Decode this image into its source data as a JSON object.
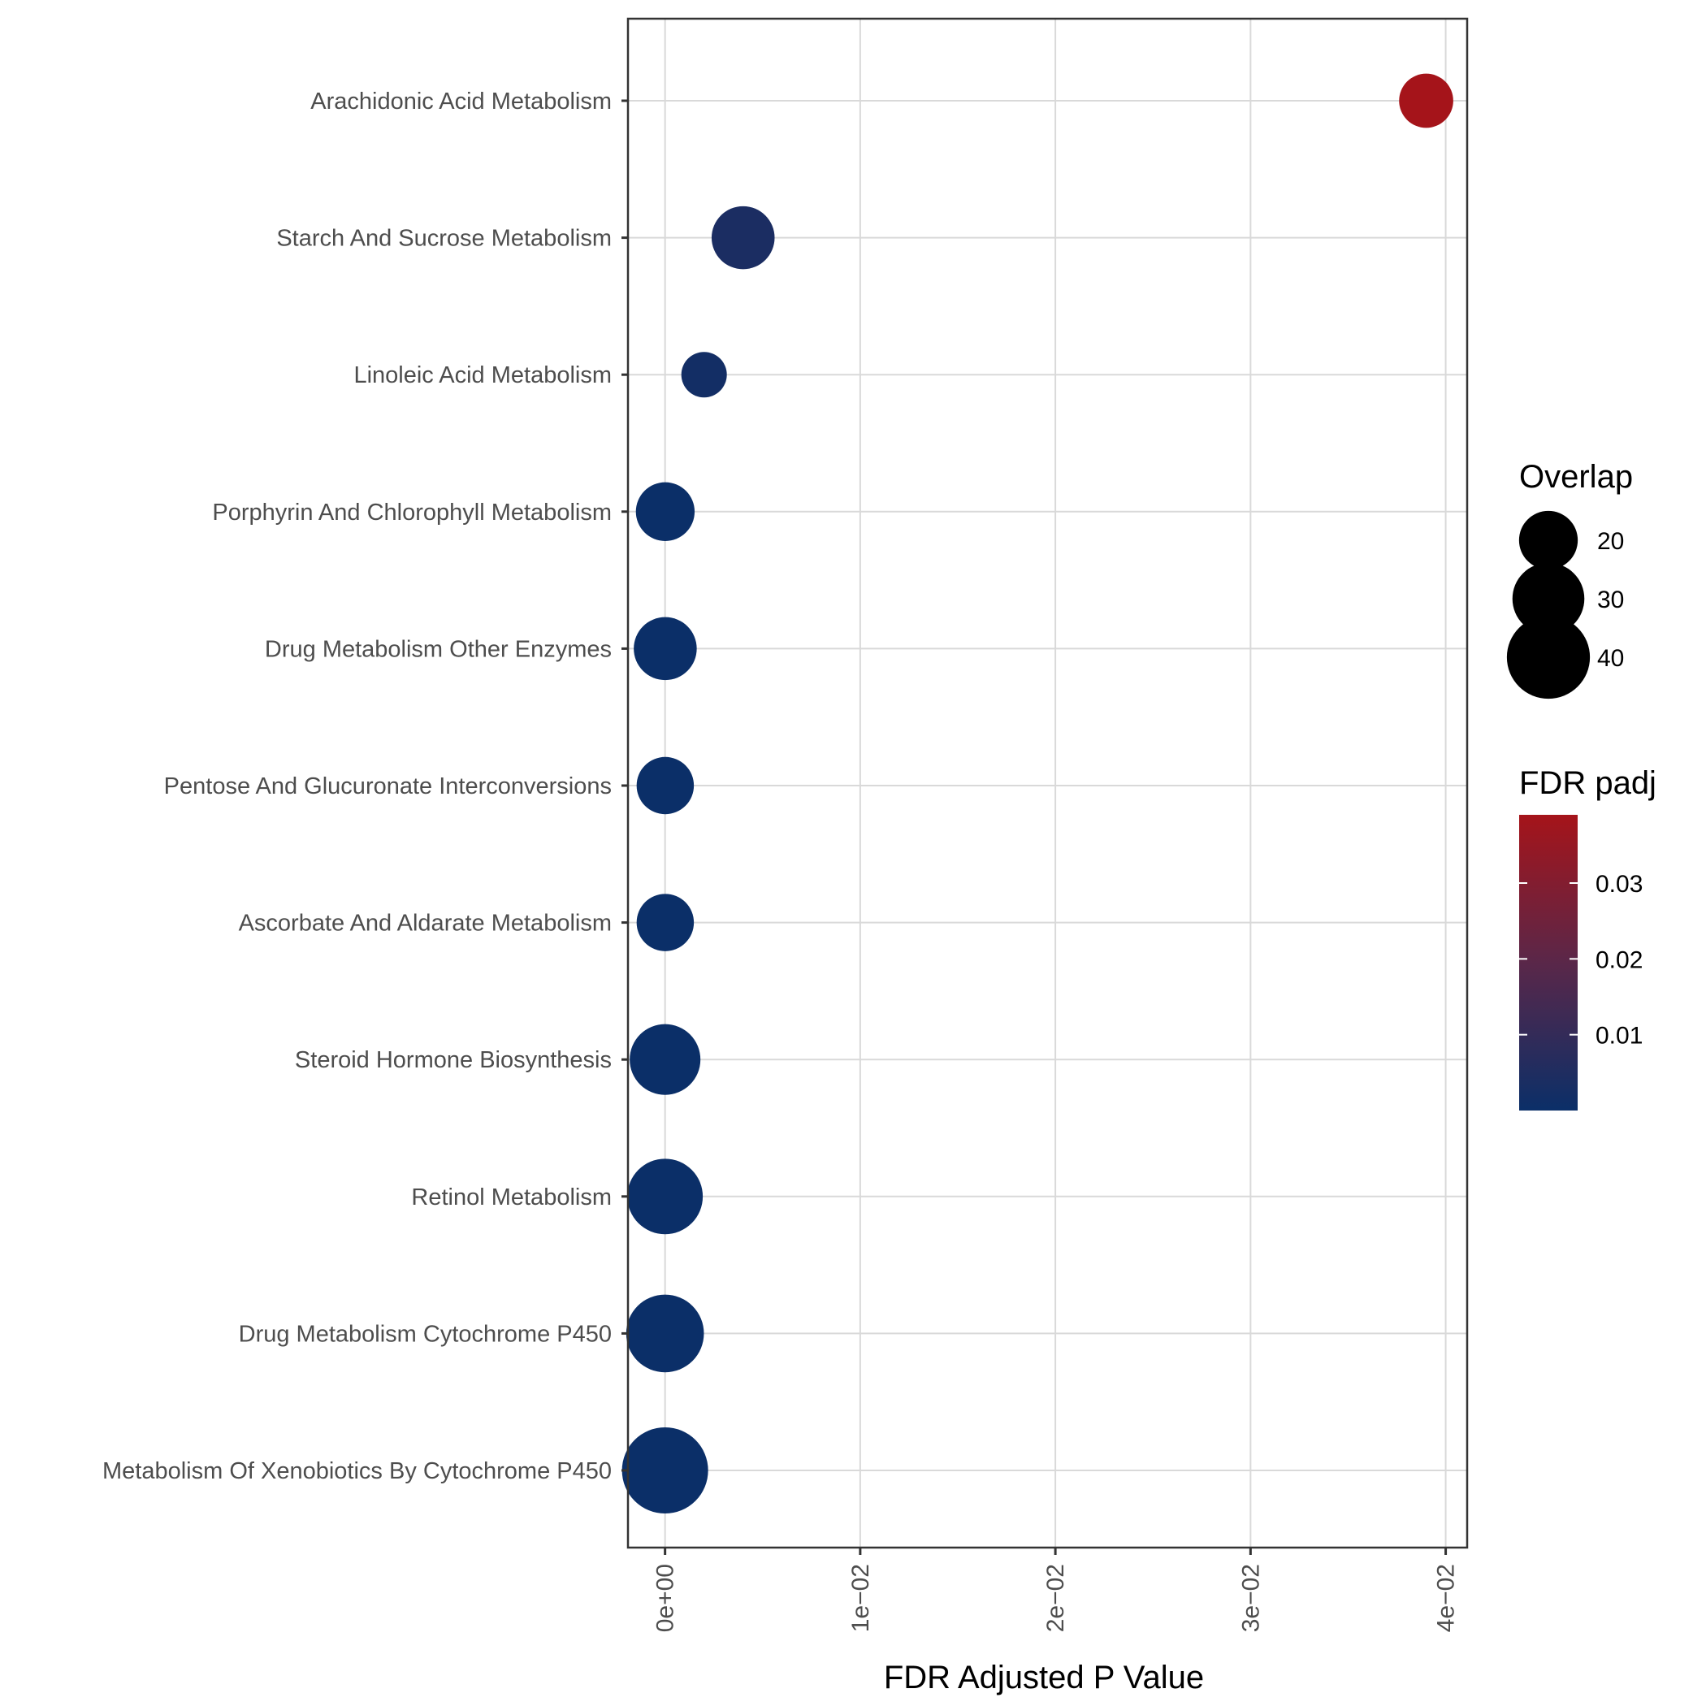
{
  "chart_data": {
    "type": "scatter",
    "title": "",
    "xlabel": "FDR Adjusted P Value",
    "ylabel": "",
    "xlim": [
      -0.0019,
      0.0411
    ],
    "x_ticks": [
      0,
      0.01,
      0.02,
      0.03,
      0.04
    ],
    "x_tick_labels": [
      "0e+00",
      "1e−02",
      "2e−02",
      "3e−02",
      "4e−02"
    ],
    "grid": true,
    "categories": [
      "Arachidonic Acid Metabolism",
      "Starch And Sucrose Metabolism",
      "Linoleic Acid Metabolism",
      "Porphyrin And Chlorophyll Metabolism",
      "Drug Metabolism Other Enzymes",
      "Pentose And Glucuronate Interconversions",
      "Ascorbate And Aldarate Metabolism",
      "Steroid Hormone Biosynthesis",
      "Retinol Metabolism",
      "Drug Metabolism Cytochrome P450",
      "Metabolism Of Xenobiotics By Cytochrome P450"
    ],
    "x": [
      0.039,
      0.004,
      0.002,
      1e-05,
      1e-05,
      1e-05,
      1e-05,
      1e-06,
      1e-07,
      1e-07,
      1e-08
    ],
    "overlap": [
      17,
      23,
      12,
      20,
      23,
      19,
      19,
      29,
      33,
      35,
      43
    ],
    "size_legend": {
      "title": "Overlap",
      "values": [
        20,
        30,
        40
      ],
      "labels": [
        "20",
        "30",
        "40"
      ]
    },
    "color_legend": {
      "title": "FDR padj",
      "range": [
        0,
        0.039
      ],
      "ticks": [
        0.01,
        0.02,
        0.03
      ],
      "labels": [
        "0.01",
        "0.02",
        "0.03"
      ],
      "low_color": "#0b2f68",
      "high_color": "#a5141a"
    }
  }
}
